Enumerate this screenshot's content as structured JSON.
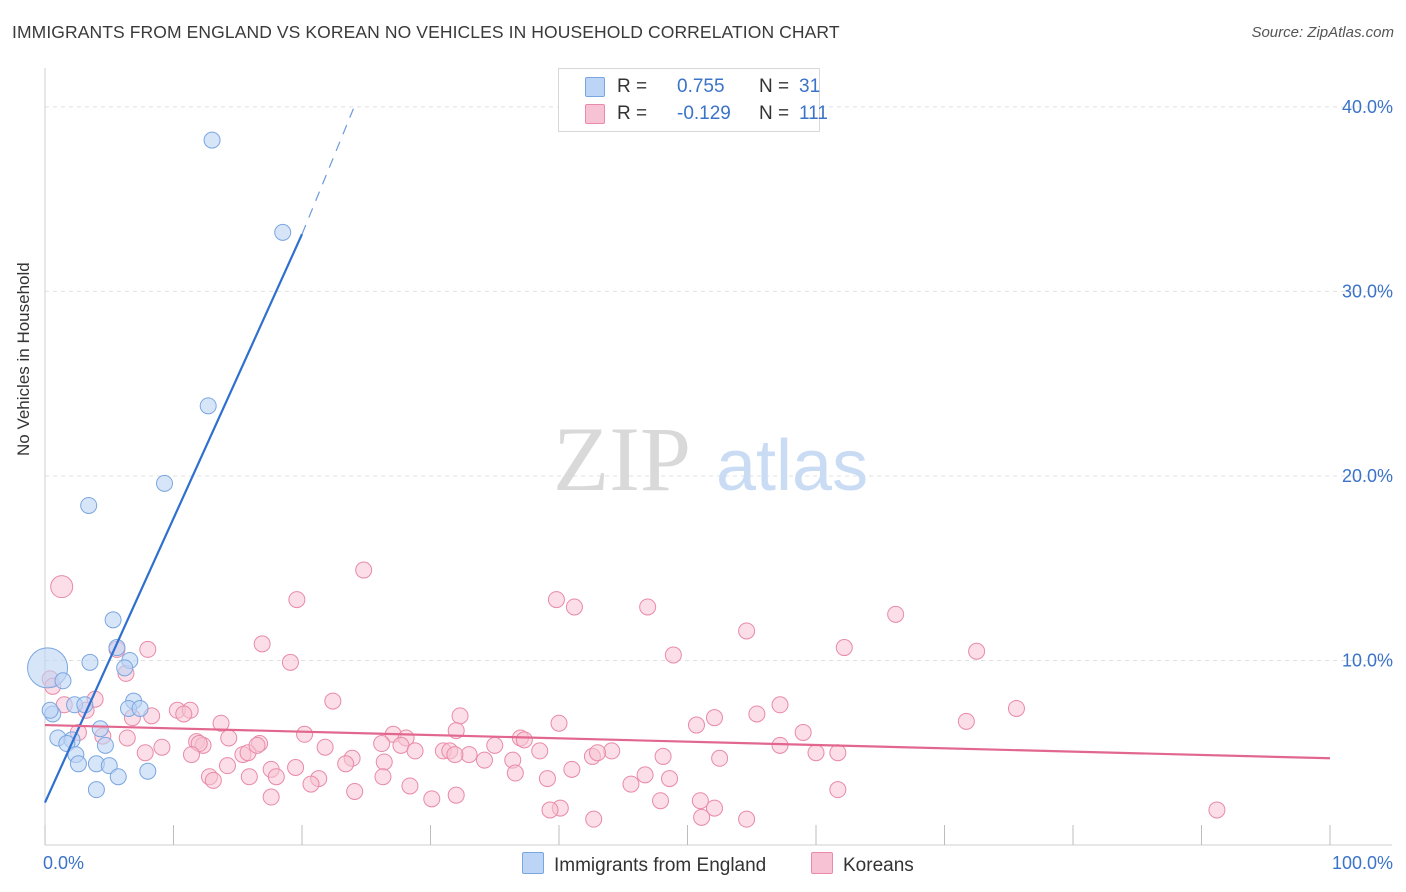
{
  "title": "IMMIGRANTS FROM ENGLAND VS KOREAN NO VEHICLES IN HOUSEHOLD CORRELATION CHART",
  "source": "Source: ZipAtlas.com",
  "watermark": {
    "zip": "ZIP",
    "atlas": "atlas"
  },
  "colors": {
    "blue_fill": "#bcd4f5",
    "blue_stroke": "#7aa6e0",
    "blue_line": "#2f6fcf",
    "pink_fill": "#f7c3d4",
    "pink_stroke": "#e98aa8",
    "pink_line": "#e2678f",
    "axis_text": "#3b73c8",
    "grid": "#e0e0e0"
  },
  "legend": {
    "series": [
      {
        "r_label": "R =",
        "r_value": "0.755",
        "n_label": "N =",
        "n_value": "31"
      },
      {
        "r_label": "R =",
        "r_value": "-0.129",
        "n_label": "N =",
        "n_value": "111"
      }
    ]
  },
  "bottom_legend": {
    "england": "Immigrants from England",
    "koreans": "Koreans"
  },
  "chart_data": {
    "type": "scatter",
    "title": "IMMIGRANTS FROM ENGLAND VS KOREAN NO VEHICLES IN HOUSEHOLD CORRELATION CHART",
    "xlabel": "",
    "ylabel": "No Vehicles in Household",
    "xlim": [
      0,
      100
    ],
    "ylim": [
      0,
      42
    ],
    "x_tick_labels": [
      "0.0%",
      "100.0%"
    ],
    "y_ticks": [
      10,
      20,
      30,
      40
    ],
    "y_tick_labels": [
      "10.0%",
      "20.0%",
      "30.0%",
      "40.0%"
    ],
    "grid": true,
    "legend_position": "top-center",
    "series": [
      {
        "name": "Immigrants from England",
        "color": "#bcd4f5",
        "r": 0.755,
        "n": 31,
        "trend": {
          "x": [
            0,
            20
          ],
          "y": [
            2.3,
            33.1
          ],
          "dashed_to": [
            24,
            39.9
          ]
        },
        "points": [
          [
            13,
            38.2
          ],
          [
            18.5,
            33.2
          ],
          [
            12.7,
            23.8
          ],
          [
            9.3,
            19.6
          ],
          [
            3.4,
            18.4
          ],
          [
            5.3,
            12.2
          ],
          [
            5.6,
            10.7
          ],
          [
            6.6,
            10.0
          ],
          [
            3.5,
            9.9
          ],
          [
            6.2,
            9.6
          ],
          [
            0.2,
            9.6
          ],
          [
            1.4,
            8.9
          ],
          [
            6.9,
            7.8
          ],
          [
            2.3,
            7.6
          ],
          [
            3.1,
            7.6
          ],
          [
            6.5,
            7.4
          ],
          [
            7.4,
            7.4
          ],
          [
            0.6,
            7.1
          ],
          [
            4.3,
            6.3
          ],
          [
            1.0,
            5.8
          ],
          [
            2.1,
            5.7
          ],
          [
            1.7,
            5.5
          ],
          [
            4.7,
            5.4
          ],
          [
            2.4,
            4.9
          ],
          [
            2.6,
            4.4
          ],
          [
            4.0,
            4.4
          ],
          [
            5.0,
            4.3
          ],
          [
            8.0,
            4.0
          ],
          [
            5.7,
            3.7
          ],
          [
            4.0,
            3.0
          ],
          [
            0.4,
            7.3
          ]
        ]
      },
      {
        "name": "Koreans",
        "color": "#f7c3d4",
        "r": -0.129,
        "n": 111,
        "trend": {
          "x": [
            0,
            100
          ],
          "y": [
            6.5,
            4.7
          ]
        },
        "points": [
          [
            24.8,
            14.9
          ],
          [
            1.3,
            14.0
          ],
          [
            39.8,
            13.3
          ],
          [
            41.2,
            12.9
          ],
          [
            19.6,
            13.3
          ],
          [
            46.9,
            12.9
          ],
          [
            66.2,
            12.5
          ],
          [
            54.6,
            11.6
          ],
          [
            16.9,
            10.9
          ],
          [
            8.0,
            10.6
          ],
          [
            5.6,
            10.6
          ],
          [
            62.2,
            10.7
          ],
          [
            72.5,
            10.5
          ],
          [
            48.9,
            10.3
          ],
          [
            19.1,
            9.9
          ],
          [
            6.3,
            9.3
          ],
          [
            0.4,
            9.0
          ],
          [
            0.6,
            8.6
          ],
          [
            3.9,
            7.9
          ],
          [
            22.4,
            7.8
          ],
          [
            57.2,
            7.6
          ],
          [
            75.6,
            7.4
          ],
          [
            1.5,
            7.6
          ],
          [
            3.2,
            7.3
          ],
          [
            10.3,
            7.3
          ],
          [
            11.3,
            7.3
          ],
          [
            10.8,
            7.1
          ],
          [
            55.4,
            7.1
          ],
          [
            8.3,
            7.0
          ],
          [
            6.8,
            6.9
          ],
          [
            32.3,
            7.0
          ],
          [
            52.1,
            6.9
          ],
          [
            40.0,
            6.6
          ],
          [
            71.7,
            6.7
          ],
          [
            13.7,
            6.6
          ],
          [
            50.7,
            6.5
          ],
          [
            32.0,
            6.2
          ],
          [
            2.6,
            6.1
          ],
          [
            20.2,
            6.0
          ],
          [
            27.1,
            6.0
          ],
          [
            28.1,
            5.8
          ],
          [
            37.0,
            5.8
          ],
          [
            59.0,
            6.1
          ],
          [
            14.3,
            5.8
          ],
          [
            4.5,
            5.9
          ],
          [
            11.8,
            5.6
          ],
          [
            12.3,
            5.4
          ],
          [
            16.7,
            5.5
          ],
          [
            21.8,
            5.3
          ],
          [
            26.2,
            5.5
          ],
          [
            35.0,
            5.4
          ],
          [
            27.7,
            5.4
          ],
          [
            38.5,
            5.1
          ],
          [
            44.1,
            5.1
          ],
          [
            9.1,
            5.3
          ],
          [
            12.0,
            5.5
          ],
          [
            15.4,
            4.9
          ],
          [
            31.0,
            5.1
          ],
          [
            33.0,
            4.9
          ],
          [
            42.6,
            4.8
          ],
          [
            48.1,
            4.8
          ],
          [
            60.0,
            5.0
          ],
          [
            61.7,
            5.0
          ],
          [
            57.2,
            5.4
          ],
          [
            15.8,
            5.0
          ],
          [
            7.8,
            5.0
          ],
          [
            28.8,
            5.1
          ],
          [
            31.5,
            5.1
          ],
          [
            23.9,
            4.7
          ],
          [
            26.4,
            4.5
          ],
          [
            36.4,
            4.6
          ],
          [
            23.4,
            4.4
          ],
          [
            19.5,
            4.2
          ],
          [
            14.2,
            4.3
          ],
          [
            17.6,
            4.1
          ],
          [
            46.7,
            3.8
          ],
          [
            52.5,
            4.7
          ],
          [
            31.9,
            4.9
          ],
          [
            36.6,
            3.9
          ],
          [
            41.0,
            4.1
          ],
          [
            12.8,
            3.7
          ],
          [
            15.9,
            3.7
          ],
          [
            18.0,
            3.7
          ],
          [
            21.3,
            3.6
          ],
          [
            26.3,
            3.7
          ],
          [
            39.1,
            3.6
          ],
          [
            48.6,
            3.6
          ],
          [
            45.6,
            3.3
          ],
          [
            20.7,
            3.3
          ],
          [
            28.4,
            3.2
          ],
          [
            61.7,
            3.0
          ],
          [
            24.1,
            2.9
          ],
          [
            32.0,
            2.7
          ],
          [
            17.6,
            2.6
          ],
          [
            30.1,
            2.5
          ],
          [
            47.9,
            2.4
          ],
          [
            51.0,
            2.4
          ],
          [
            40.1,
            2.0
          ],
          [
            52.1,
            2.0
          ],
          [
            39.3,
            1.9
          ],
          [
            91.2,
            1.9
          ],
          [
            51.1,
            1.5
          ],
          [
            42.7,
            1.4
          ],
          [
            54.6,
            1.4
          ],
          [
            13.1,
            3.5
          ],
          [
            6.4,
            5.8
          ],
          [
            11.4,
            4.9
          ],
          [
            34.2,
            4.6
          ],
          [
            37.3,
            5.7
          ],
          [
            43.0,
            5.0
          ],
          [
            16.5,
            5.4
          ]
        ]
      }
    ]
  }
}
